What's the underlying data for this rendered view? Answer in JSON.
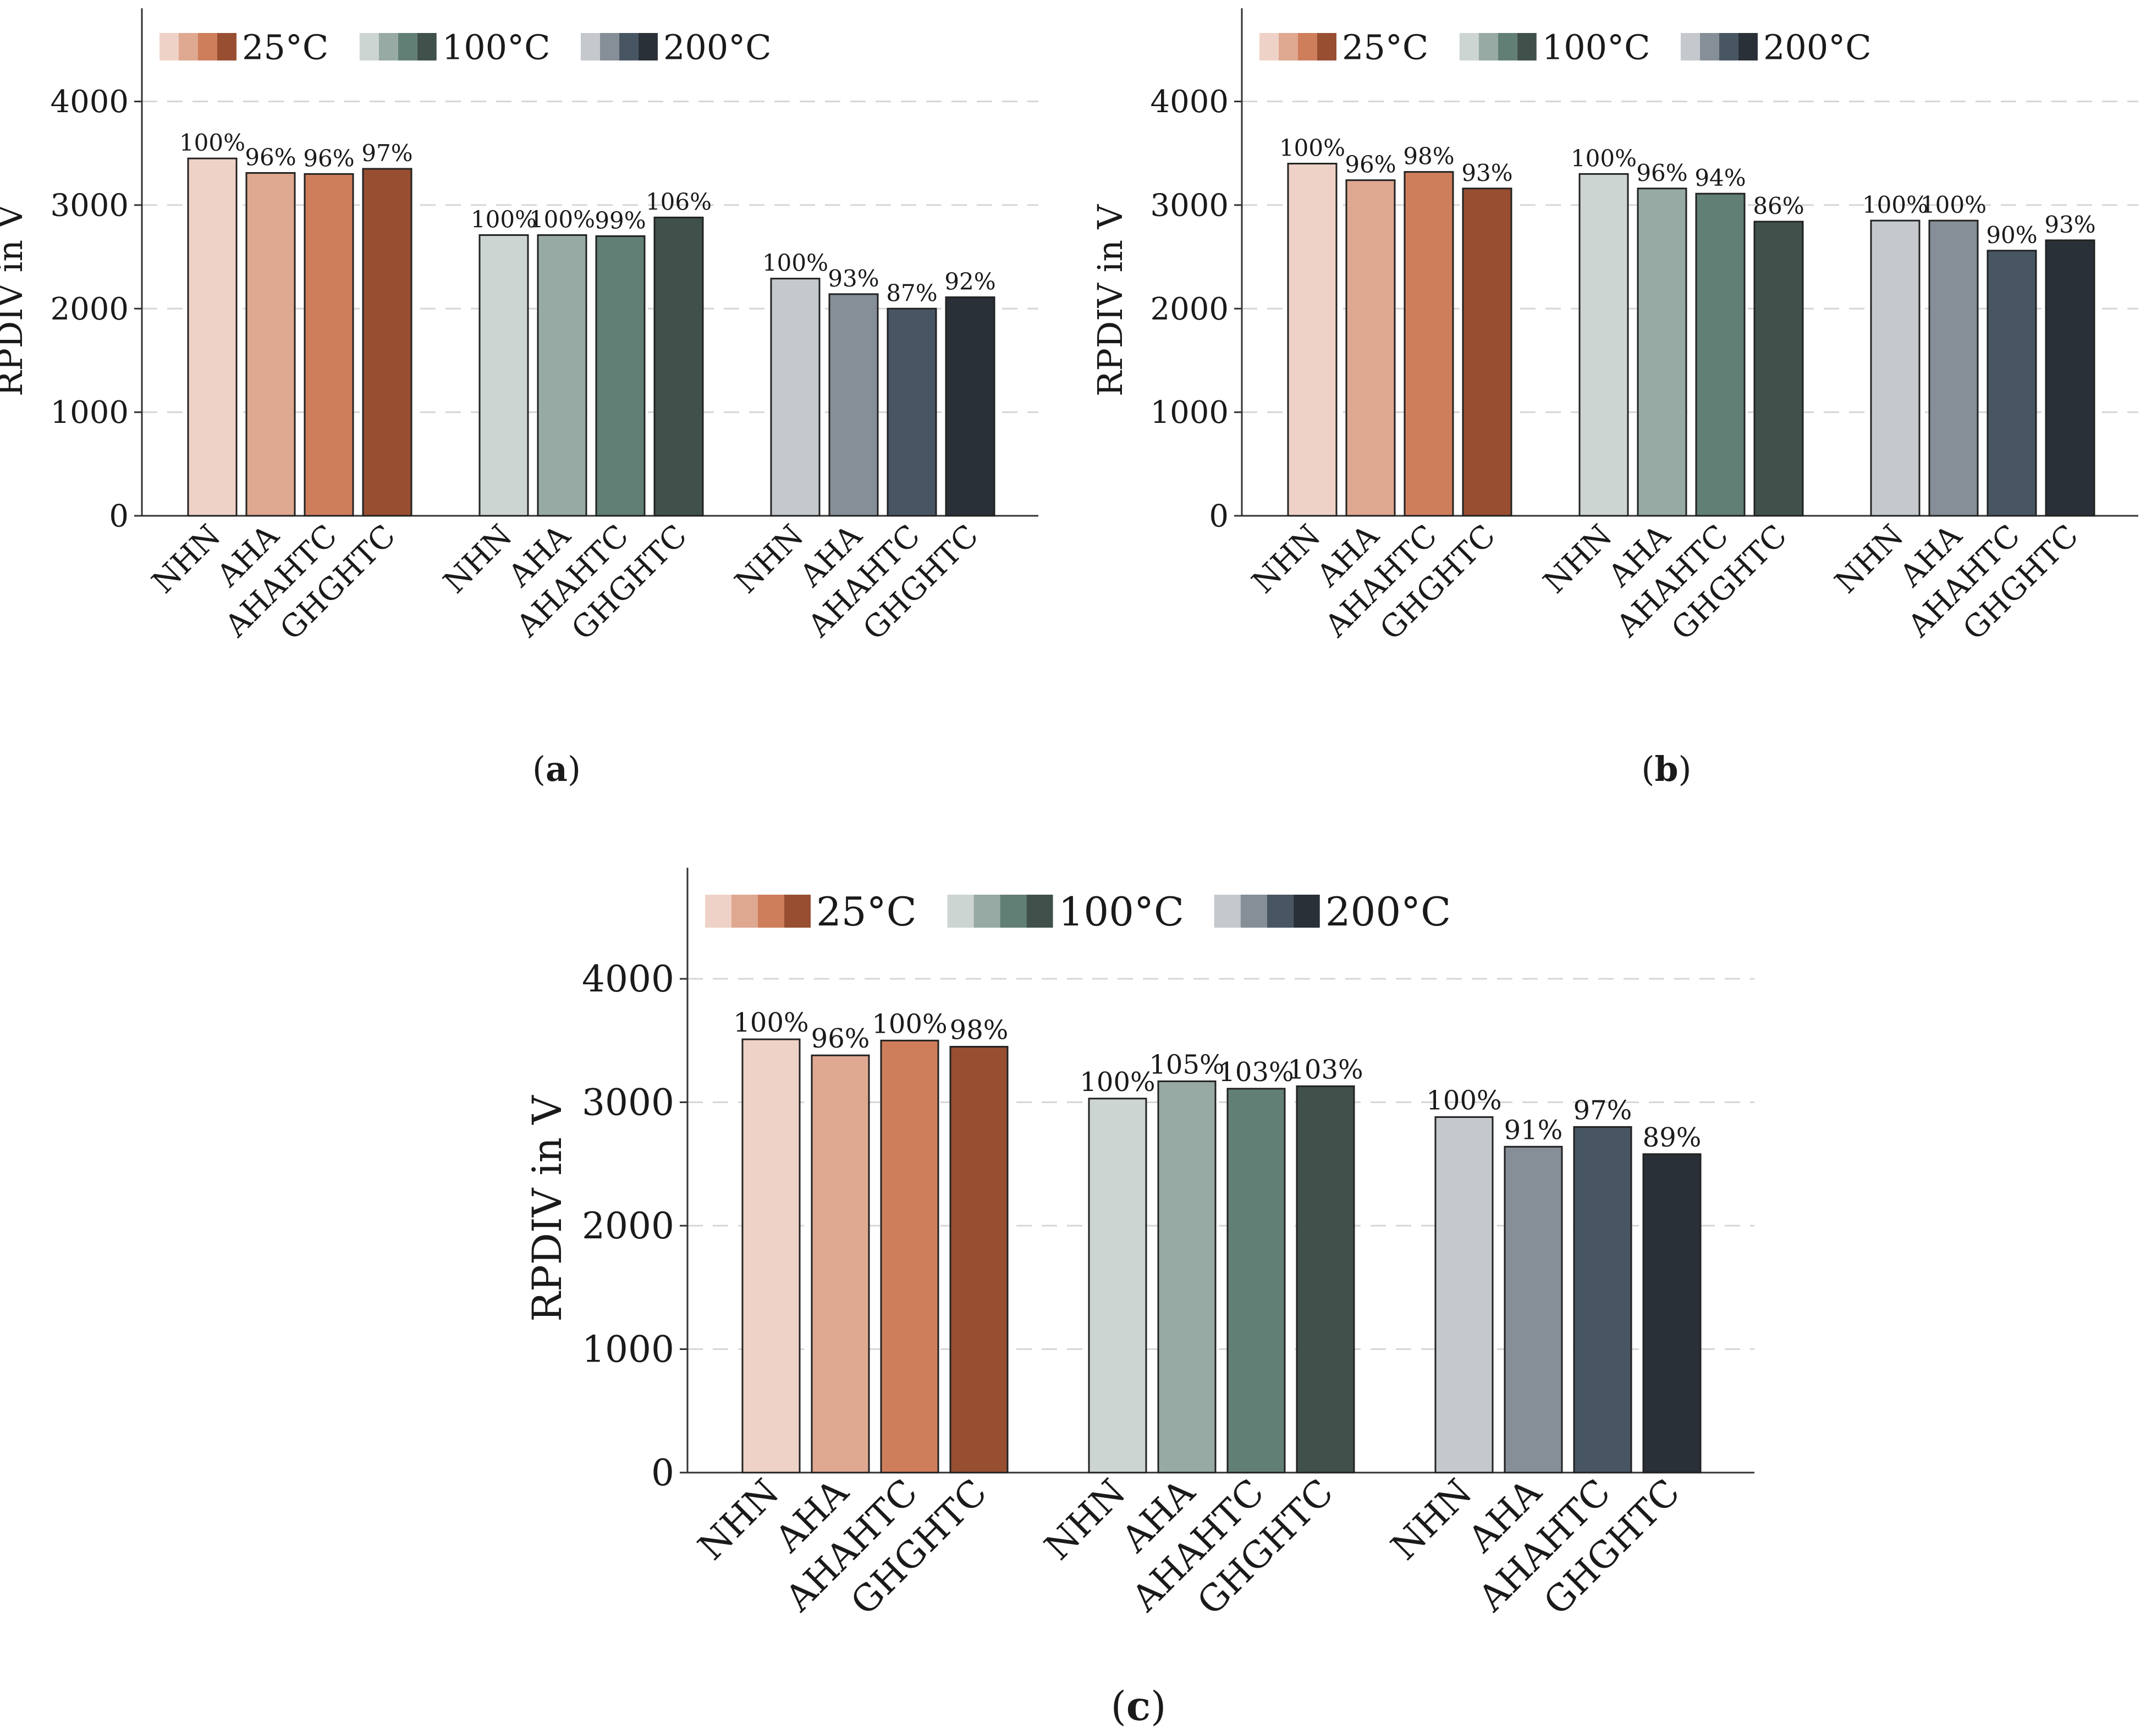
{
  "figure": {
    "legend": [
      {
        "label": "25°C",
        "colors": [
          "#efd2c7",
          "#dfa890",
          "#cf7e5c",
          "#984f31"
        ]
      },
      {
        "label": "100°C",
        "colors": [
          "#cdd5d3",
          "#97aaa4",
          "#627f75",
          "#40514b"
        ]
      },
      {
        "label": "200°C",
        "colors": [
          "#c5c9cd",
          "#868f98",
          "#485664",
          "#2a3037"
        ]
      }
    ]
  },
  "chart_data": [
    {
      "type": "bar",
      "caption": "(a)",
      "caption_letter": "a",
      "ylabel": "RPDIV in V",
      "ylim": [
        0,
        4900
      ],
      "yticks": [
        0,
        1000,
        2000,
        3000,
        4000
      ],
      "grid": "dashed-horizontal",
      "groups": [
        {
          "name": "25°C",
          "categories": [
            "NHN",
            "AHA",
            "AHAHTC",
            "GHGHTC"
          ],
          "values": [
            3450,
            3310,
            3300,
            3350
          ],
          "labels": [
            "100%",
            "96%",
            "96%",
            "97%"
          ]
        },
        {
          "name": "100°C",
          "categories": [
            "NHN",
            "AHA",
            "AHAHTC",
            "GHGHTC"
          ],
          "values": [
            2710,
            2710,
            2700,
            2880
          ],
          "labels": [
            "100%",
            "100%",
            "99%",
            "106%"
          ]
        },
        {
          "name": "200°C",
          "categories": [
            "NHN",
            "AHA",
            "AHAHTC",
            "GHGHTC"
          ],
          "values": [
            2290,
            2140,
            2000,
            2110
          ],
          "labels": [
            "100%",
            "93%",
            "87%",
            "92%"
          ]
        }
      ]
    },
    {
      "type": "bar",
      "caption": "(b)",
      "caption_letter": "b",
      "ylabel": "RPDIV in V",
      "ylim": [
        0,
        4900
      ],
      "yticks": [
        0,
        1000,
        2000,
        3000,
        4000
      ],
      "grid": "dashed-horizontal",
      "groups": [
        {
          "name": "25°C",
          "categories": [
            "NHN",
            "AHA",
            "AHAHTC",
            "GHGHTC"
          ],
          "values": [
            3400,
            3240,
            3320,
            3160
          ],
          "labels": [
            "100%",
            "96%",
            "98%",
            "93%"
          ]
        },
        {
          "name": "100°C",
          "categories": [
            "NHN",
            "AHA",
            "AHAHTC",
            "GHGHTC"
          ],
          "values": [
            3300,
            3160,
            3110,
            2840
          ],
          "labels": [
            "100%",
            "96%",
            "94%",
            "86%"
          ]
        },
        {
          "name": "200°C",
          "categories": [
            "NHN",
            "AHA",
            "AHAHTC",
            "GHGHTC"
          ],
          "values": [
            2850,
            2850,
            2560,
            2660
          ],
          "labels": [
            "100%",
            "100%",
            "90%",
            "93%"
          ]
        }
      ]
    },
    {
      "type": "bar",
      "caption": "(c)",
      "caption_letter": "c",
      "ylabel": "RPDIV in V",
      "ylim": [
        0,
        4900
      ],
      "yticks": [
        0,
        1000,
        2000,
        3000,
        4000
      ],
      "grid": "dashed-horizontal",
      "groups": [
        {
          "name": "25°C",
          "categories": [
            "NHN",
            "AHA",
            "AHAHTC",
            "GHGHTC"
          ],
          "values": [
            3510,
            3380,
            3500,
            3450
          ],
          "labels": [
            "100%",
            "96%",
            "100%",
            "98%"
          ]
        },
        {
          "name": "100°C",
          "categories": [
            "NHN",
            "AHA",
            "AHAHTC",
            "GHGHTC"
          ],
          "values": [
            3030,
            3170,
            3110,
            3130
          ],
          "labels": [
            "100%",
            "105%",
            "103%",
            "103%"
          ]
        },
        {
          "name": "200°C",
          "categories": [
            "NHN",
            "AHA",
            "AHAHTC",
            "GHGHTC"
          ],
          "values": [
            2880,
            2640,
            2800,
            2580
          ],
          "labels": [
            "100%",
            "91%",
            "97%",
            "89%"
          ]
        }
      ]
    }
  ]
}
